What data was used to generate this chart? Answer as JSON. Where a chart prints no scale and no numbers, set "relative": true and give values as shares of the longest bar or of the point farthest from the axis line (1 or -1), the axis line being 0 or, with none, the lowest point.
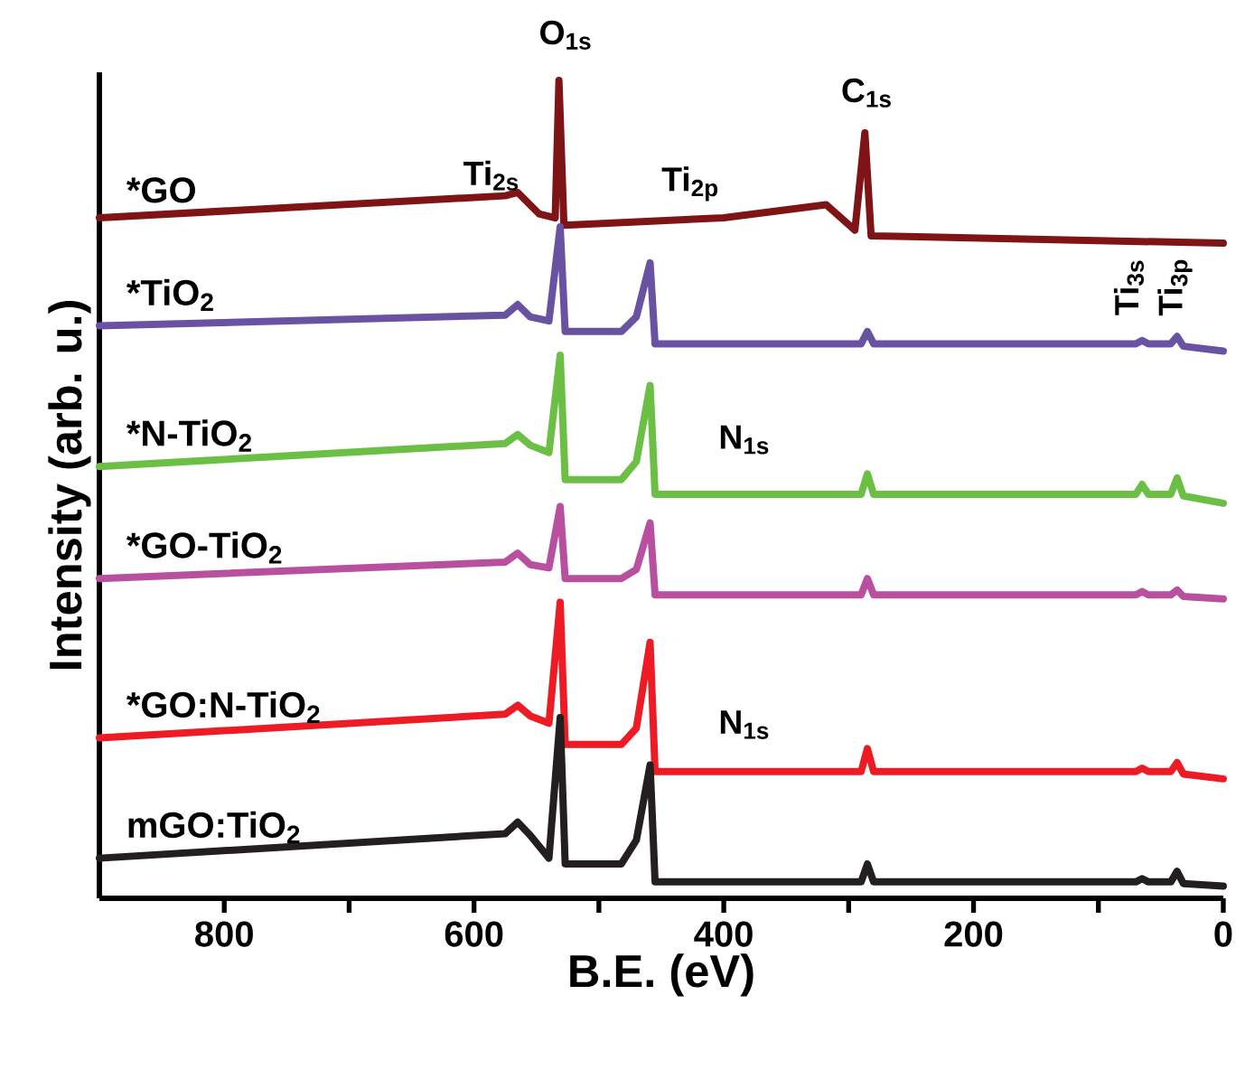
{
  "chart_data": {
    "type": "line",
    "relative": true,
    "xlabel": "B.E. (eV)",
    "ylabel": "Intensity (arb. u.)",
    "xlim": [
      900,
      0
    ],
    "xticks": [
      800,
      {
        "value": 700,
        "label": null
      },
      600,
      {
        "value": 500,
        "label": null
      },
      400,
      {
        "value": 300,
        "label": null
      },
      200,
      {
        "value": 100,
        "label": null
      },
      0
    ],
    "legend": false,
    "grid": false,
    "marker": "none",
    "series": [
      {
        "name": "*GO",
        "color": "#7f1416",
        "x": [
          900,
          575,
          565,
          548,
          535,
          532,
          528,
          400,
          318,
          295,
          287,
          282,
          0
        ],
        "values": [
          0.832,
          0.859,
          0.863,
          0.837,
          0.832,
          1.0,
          0.823,
          0.832,
          0.848,
          0.817,
          0.936,
          0.81,
          0.801
        ]
      },
      {
        "name": "*TiO$_{2}$",
        "color": "#6a52a3",
        "x": [
          900,
          575,
          565,
          555,
          540,
          531,
          527,
          482,
          470,
          459,
          455,
          290,
          285,
          280,
          70,
          65,
          60,
          42,
          37,
          32,
          0
        ],
        "values": [
          0.7,
          0.713,
          0.726,
          0.711,
          0.706,
          0.821,
          0.693,
          0.693,
          0.711,
          0.777,
          0.678,
          0.678,
          0.693,
          0.678,
          0.678,
          0.682,
          0.678,
          0.678,
          0.687,
          0.675,
          0.669
        ]
      },
      {
        "name": "*N-TiO$_{2}$",
        "color": "#6cbf45",
        "x": [
          900,
          575,
          565,
          555,
          540,
          531,
          527,
          482,
          470,
          459,
          455,
          290,
          285,
          280,
          70,
          65,
          60,
          42,
          37,
          32,
          0
        ],
        "values": [
          0.528,
          0.556,
          0.567,
          0.554,
          0.545,
          0.664,
          0.512,
          0.512,
          0.534,
          0.627,
          0.494,
          0.494,
          0.519,
          0.494,
          0.494,
          0.506,
          0.494,
          0.494,
          0.514,
          0.492,
          0.483
        ]
      },
      {
        "name": "*GO-TiO$_{2}$",
        "color": "#b8509f",
        "x": [
          900,
          575,
          565,
          555,
          540,
          531,
          527,
          482,
          470,
          459,
          455,
          290,
          285,
          280,
          70,
          65,
          60,
          42,
          37,
          32,
          0
        ],
        "values": [
          0.391,
          0.411,
          0.422,
          0.408,
          0.404,
          0.479,
          0.391,
          0.391,
          0.402,
          0.459,
          0.371,
          0.371,
          0.391,
          0.371,
          0.371,
          0.375,
          0.371,
          0.371,
          0.377,
          0.369,
          0.366
        ]
      },
      {
        "name": "*GO:N-TiO$_{2}$",
        "color": "#ed1c24",
        "x": [
          900,
          575,
          565,
          555,
          540,
          531,
          527,
          482,
          470,
          459,
          455,
          290,
          285,
          280,
          70,
          65,
          60,
          42,
          37,
          32,
          0
        ],
        "values": [
          0.196,
          0.225,
          0.236,
          0.223,
          0.214,
          0.362,
          0.188,
          0.188,
          0.208,
          0.313,
          0.155,
          0.155,
          0.183,
          0.155,
          0.155,
          0.159,
          0.155,
          0.155,
          0.166,
          0.152,
          0.146
        ]
      },
      {
        "name": "mGO:TiO$_{2}$",
        "color": "#231f20",
        "x": [
          900,
          575,
          565,
          555,
          540,
          531,
          527,
          482,
          470,
          459,
          455,
          290,
          285,
          280,
          70,
          65,
          60,
          42,
          37,
          32,
          0
        ],
        "values": [
          0.049,
          0.079,
          0.093,
          0.077,
          0.049,
          0.221,
          0.042,
          0.042,
          0.071,
          0.163,
          0.02,
          0.02,
          0.042,
          0.02,
          0.02,
          0.024,
          0.02,
          0.02,
          0.033,
          0.018,
          0.015
        ]
      }
    ],
    "annotations": [
      "O$_{1s}$",
      "Ti$_{2s}$",
      "Ti$_{2p}$",
      "C$_{1s}$",
      "Ti$_{3s}$",
      "Ti$_{3p}$",
      "N$_{1s}$",
      "N$_{1s}$"
    ]
  }
}
